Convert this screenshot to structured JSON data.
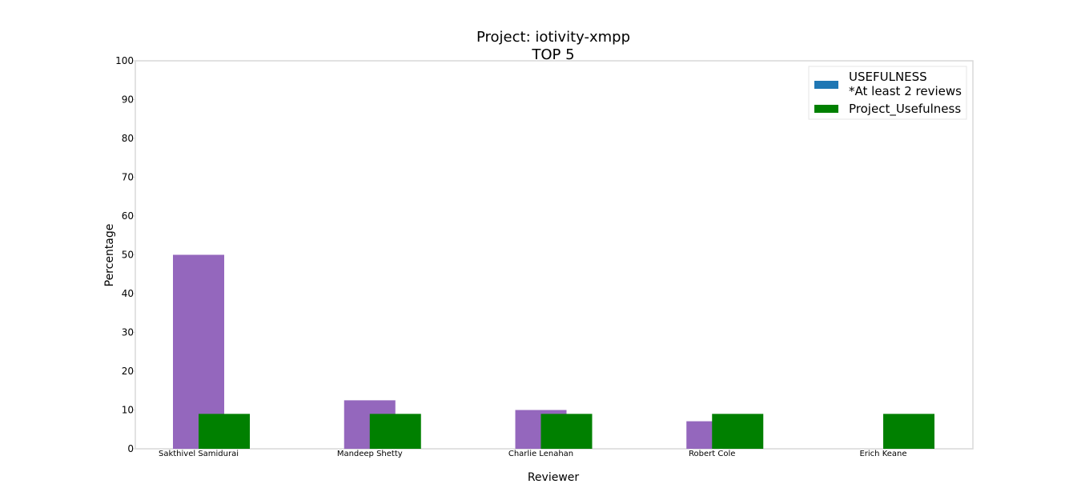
{
  "chart_data": {
    "type": "bar",
    "title_lines": [
      "Project: iotivity-xmpp",
      "TOP 5"
    ],
    "xlabel": "Reviewer",
    "ylabel": "Percentage",
    "ylim": [
      0,
      100
    ],
    "yticks": [
      0,
      10,
      20,
      30,
      40,
      50,
      60,
      70,
      80,
      90,
      100
    ],
    "categories": [
      "Sakthivel Samidurai",
      "Mandeep Shetty",
      "Charlie Lenahan",
      "Robert Cole",
      "Erich Keane"
    ],
    "series": [
      {
        "color": "#9467bd",
        "values": [
          50,
          12.5,
          10,
          7.1,
          0
        ]
      },
      {
        "name": "Project_Usefulness",
        "color": "#008000",
        "values": [
          9,
          9,
          9,
          9,
          9
        ]
      }
    ],
    "legend": {
      "position": "top-right",
      "items": [
        {
          "label_lines": [
            "USEFULNESS",
            "*At least 2 reviews"
          ],
          "color": "#1f77b4"
        },
        {
          "label_lines": [
            "Project_Usefulness"
          ],
          "color": "#008000"
        }
      ]
    },
    "grid": false
  }
}
